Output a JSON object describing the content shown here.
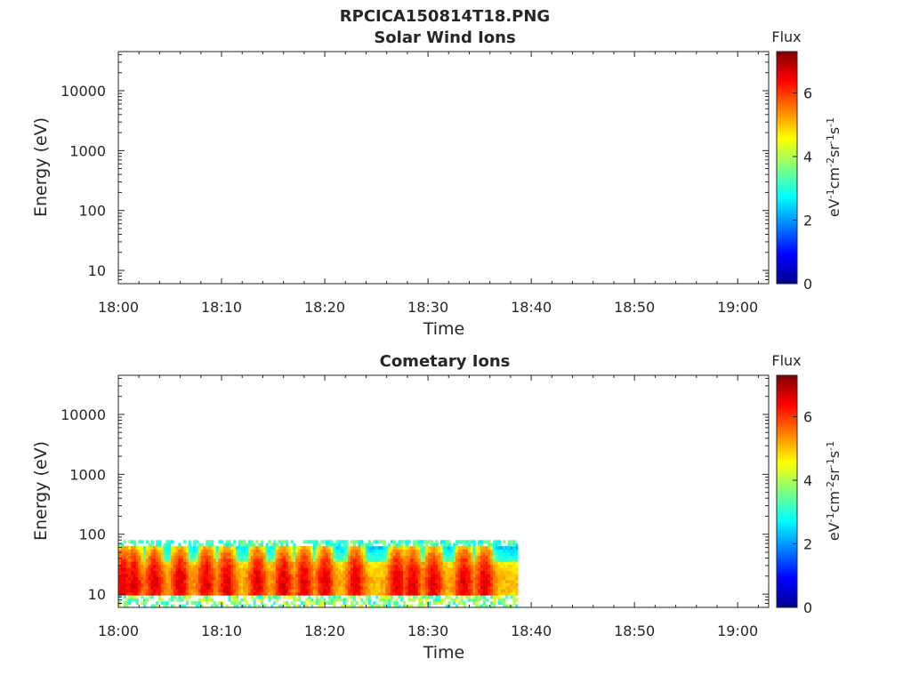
{
  "figure": {
    "title": "RPCICA150814T18.PNG"
  },
  "chart_data": [
    {
      "type": "heatmap",
      "title": "Solar Wind Ions",
      "xlabel": "Time",
      "ylabel": "Energy (eV)",
      "x_ticks": [
        "18:00",
        "18:10",
        "18:20",
        "18:30",
        "18:40",
        "18:50",
        "19:00"
      ],
      "xlim_minutes": [
        0,
        63
      ],
      "y_scale": "log",
      "y_ticks": [
        10,
        100,
        1000,
        10000
      ],
      "y_tick_labels": [
        "10",
        "100",
        "1000",
        "10000"
      ],
      "ylim": [
        6,
        45000
      ],
      "colorbar": {
        "title": "Flux",
        "label": "eV-1cm-2sr-1s-1",
        "range": [
          0,
          7.3
        ],
        "ticks": [
          "0",
          "2",
          "4",
          "6"
        ]
      },
      "data": []
    },
    {
      "type": "heatmap",
      "title": "Cometary Ions",
      "xlabel": "Time",
      "ylabel": "Energy (eV)",
      "x_ticks": [
        "18:00",
        "18:10",
        "18:20",
        "18:30",
        "18:40",
        "18:50",
        "19:00"
      ],
      "xlim_minutes": [
        0,
        63
      ],
      "y_scale": "log",
      "y_ticks": [
        10,
        100,
        1000,
        10000
      ],
      "y_tick_labels": [
        "10",
        "100",
        "1000",
        "10000"
      ],
      "ylim": [
        6,
        45000
      ],
      "colorbar": {
        "title": "Flux",
        "label": "eV-1cm-2sr-1s-1",
        "range": [
          0,
          7.3
        ],
        "ticks": [
          "0",
          "2",
          "4",
          "6"
        ]
      },
      "data_time_range_minutes": [
        0,
        38.7
      ],
      "data_energy_range": [
        6,
        80
      ],
      "peak_flux_times_minutes": [
        0.5,
        1.5,
        3.5,
        6,
        8.5,
        10.5,
        13.5,
        16,
        18,
        20,
        23,
        27,
        28.5,
        30.5,
        33.5,
        35.5
      ]
    }
  ]
}
